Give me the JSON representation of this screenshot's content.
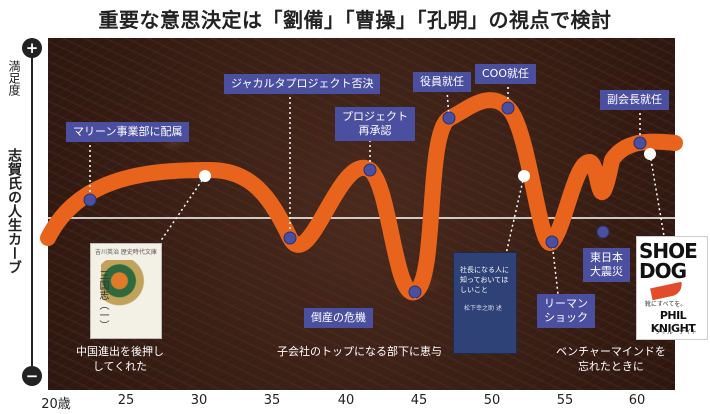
{
  "title": "重要な意思決定は「劉備」「曹操」「孔明」の視点で検討",
  "y_axis": {
    "plus": "+",
    "minus": "−",
    "top_label": "満足度",
    "main_label": "志賀氏の人生カーブ"
  },
  "x_axis": {
    "ticks": [
      "20歳",
      "25",
      "30",
      "35",
      "40",
      "45",
      "50",
      "55",
      "60"
    ]
  },
  "events": [
    {
      "label": "マリーン事業部に配属"
    },
    {
      "label": "ジャカルタプロジェクト否決"
    },
    {
      "label": "プロジェクト\n再承認"
    },
    {
      "label": "役員就任"
    },
    {
      "label": "COO就任"
    },
    {
      "label": "副会長就任"
    },
    {
      "label": "倒産の危機"
    },
    {
      "label": "リーマン\nショック"
    },
    {
      "label": "東日本\n大震災"
    }
  ],
  "captions": [
    {
      "text": "中国進出を後押し\nしてくれた"
    },
    {
      "text": "子会社のトップになる部下に恵与"
    },
    {
      "text": "ベンチャーマインドを\n忘れたときに"
    }
  ],
  "books": {
    "sanguozhi": {
      "title": "吉川英治 歴史時代文庫",
      "volume": "三国志（一）"
    },
    "matsushita": {
      "title": "社長になる人に知っておいてほしいこと",
      "author": "松下幸之助 述"
    },
    "shoedog": {
      "line1": "SHOE",
      "line2": "DOG",
      "subtitle": "靴にすべてを。",
      "author_en": "PHIL KNIGHT",
      "author_ja": "フィル・ナイト"
    }
  },
  "colors": {
    "curve": "#e8641c",
    "label_bg": "#4b4fa0",
    "dot": "#4b4fa0",
    "background": "#3d2016"
  }
}
